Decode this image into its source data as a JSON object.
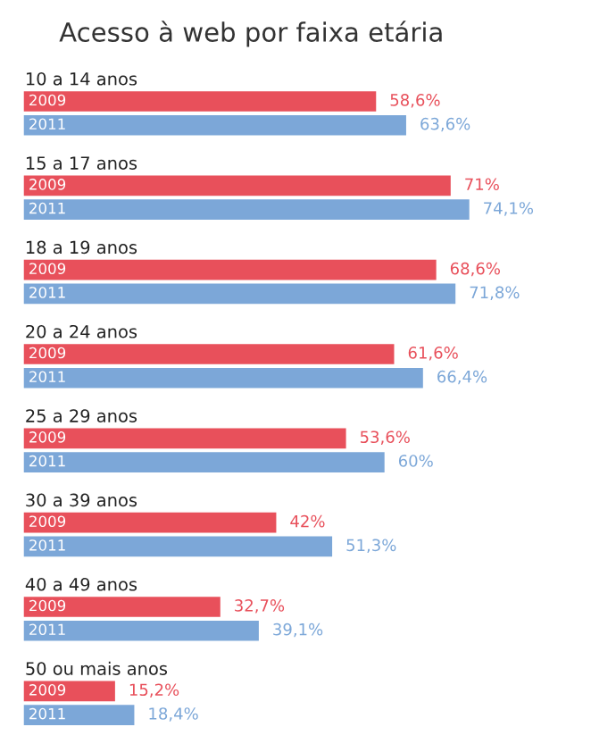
{
  "chart_data": {
    "type": "bar",
    "orientation": "horizontal",
    "title": "Acesso à web por faixa etária",
    "categories": [
      "10 a 14 anos",
      "15 a 17 anos",
      "18 a 19 anos",
      "20 a 24 anos",
      "25 a 29 anos",
      "30 a 39 anos",
      "40 a 49 anos",
      "50 ou mais anos"
    ],
    "series": [
      {
        "name": "2009",
        "color": "#e8505b",
        "values": [
          58.6,
          71,
          68.6,
          61.6,
          53.6,
          42,
          32.7,
          15.2
        ],
        "value_labels": [
          "58,6%",
          "71%",
          "68,6%",
          "61,6%",
          "53,6%",
          "42%",
          "32,7%",
          "15,2%"
        ]
      },
      {
        "name": "2011",
        "color": "#7ca7d8",
        "values": [
          63.6,
          74.1,
          71.8,
          66.4,
          60,
          51.3,
          39.1,
          18.4
        ],
        "value_labels": [
          "63,6%",
          "74,1%",
          "71,8%",
          "66,4%",
          "60%",
          "51,3%",
          "39,1%",
          "18,4%"
        ]
      }
    ],
    "legend": false
  }
}
